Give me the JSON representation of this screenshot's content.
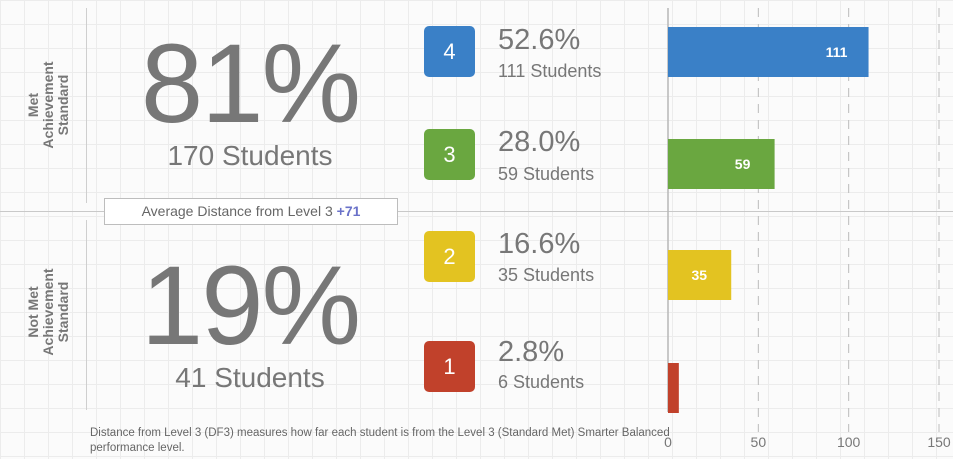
{
  "colors": {
    "level4": "#3a80c7",
    "level3": "#6aa740",
    "level2": "#e3c321",
    "level1": "#c1412b",
    "avg_highlight": "#6a72c9"
  },
  "groups": {
    "met": {
      "label": "Met\nAchievement\nStandard",
      "percent": "81%",
      "students": "170 Students"
    },
    "not_met": {
      "label": "Not Met\nAchievement\nStandard",
      "percent": "19%",
      "students": "41 Students"
    }
  },
  "average_distance": {
    "label": "Average Distance from Level 3",
    "value": "+71"
  },
  "levels": [
    {
      "level": "4",
      "percent": "52.6%",
      "students": "111 Students"
    },
    {
      "level": "3",
      "percent": "28.0%",
      "students": "59 Students"
    },
    {
      "level": "2",
      "percent": "16.6%",
      "students": "35 Students"
    },
    {
      "level": "1",
      "percent": "2.8%",
      "students": "6 Students"
    }
  ],
  "footnote": "Distance from Level 3 (DF3) measures how far each student is from the Level 3 (Standard Met) Smarter Balanced performance level.",
  "chart_data": {
    "type": "bar",
    "orientation": "horizontal",
    "categories": [
      "4",
      "3",
      "2",
      "1"
    ],
    "values": [
      111,
      59,
      35,
      6
    ],
    "data_labels": [
      "111",
      "59",
      "35",
      ""
    ],
    "xlim": [
      0,
      150
    ],
    "xticks": [
      0,
      50,
      100,
      150
    ],
    "grid": true
  }
}
